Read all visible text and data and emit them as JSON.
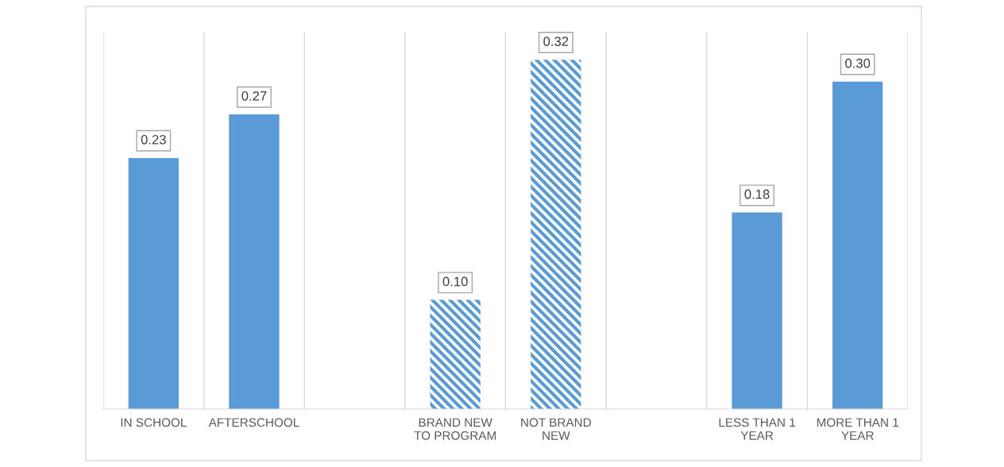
{
  "chart_data": {
    "type": "bar",
    "categories": [
      "IN SCHOOL",
      "AFTERSCHOOL",
      null,
      "BRAND NEW TO PROGRAM",
      "NOT BRAND NEW",
      null,
      "LESS THAN 1 YEAR",
      "MORE THAN 1 YEAR"
    ],
    "series": [
      {
        "color": "#5b9bd5",
        "values": [
          0.23,
          0.27,
          null,
          null,
          null,
          null,
          0.18,
          0.3
        ],
        "value_labels": [
          "0.23",
          "0.27",
          null,
          null,
          null,
          null,
          "0.18",
          "0.30"
        ]
      },
      {
        "color": "#5b9bd5",
        "values": [
          null,
          null,
          null,
          0.1,
          0.32,
          null,
          null,
          null
        ],
        "value_labels": [
          null,
          null,
          null,
          "0.10",
          "0.32",
          null,
          null,
          null
        ]
      }
    ],
    "grid": "x"
  }
}
